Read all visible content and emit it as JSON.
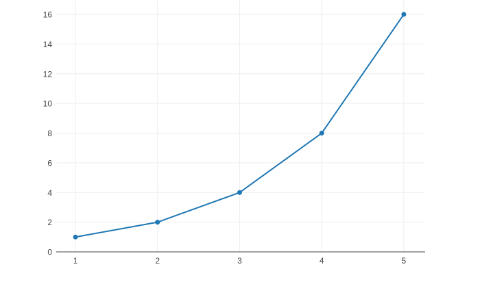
{
  "chart_data": {
    "type": "line",
    "title": "",
    "xlabel": "",
    "ylabel": "",
    "x": [
      1,
      2,
      3,
      4,
      5
    ],
    "y": [
      1,
      2,
      4,
      8,
      16
    ],
    "xticks": [
      1,
      2,
      3,
      4,
      5
    ],
    "xtick_labels": [
      "1",
      "2",
      "3",
      "4",
      "5"
    ],
    "yticks": [
      0,
      2,
      4,
      6,
      8,
      10,
      12,
      14,
      16
    ],
    "ytick_labels": [
      "0",
      "2",
      "4",
      "6",
      "8",
      "10",
      "12",
      "14",
      "16"
    ],
    "xlim": [
      0.766,
      5.26
    ],
    "ylim": [
      0,
      16.97
    ],
    "grid": true,
    "legend": false,
    "line_color": "#1f77b4",
    "marker_color": "#1f77b4",
    "line_width": 2,
    "marker_radius": 3.5,
    "grid_color": "#eeeeee",
    "zeroline_color": "#444444",
    "tick_label_color": "#444444",
    "background_color": "#ffffff"
  }
}
